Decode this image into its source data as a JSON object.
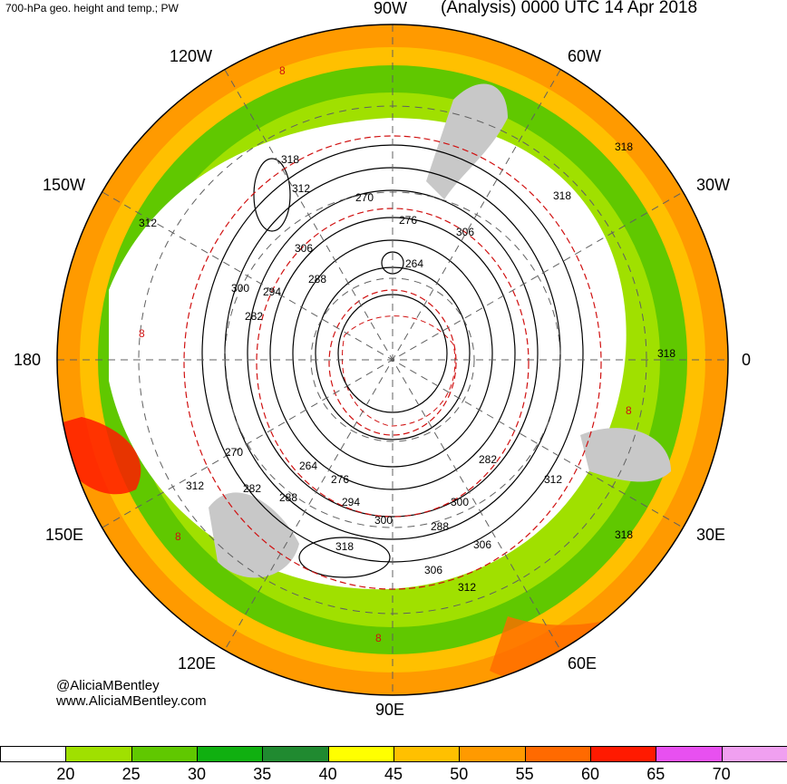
{
  "header": {
    "left_title": "700-hPa geo. height and temp.; PW",
    "right_title": "(Analysis) 0000 UTC 14 Apr 2018"
  },
  "longitude_labels": [
    "90W",
    "60W",
    "30W",
    "0",
    "30E",
    "60E",
    "90E",
    "120E",
    "150E",
    "180",
    "150W",
    "120W"
  ],
  "contour_labels": [
    "318",
    "312",
    "306",
    "300",
    "294",
    "288",
    "282",
    "276",
    "270",
    "264",
    "8"
  ],
  "credits": {
    "twitter": "@AliciaMBentley",
    "website": "www.AliciaMBentley.com"
  },
  "colorbar": {
    "ticks": [
      "20",
      "25",
      "30",
      "35",
      "40",
      "45",
      "50",
      "55",
      "60",
      "65",
      "70"
    ],
    "colors": [
      "#ffffff",
      "#a0e000",
      "#60c800",
      "#10b010",
      "#208a30",
      "#ffff00",
      "#ffc000",
      "#ff9a00",
      "#ff6a00",
      "#ff1a00",
      "#e850f0",
      "#f0a0f0"
    ]
  },
  "colors": {
    "height_contour": "#000000",
    "temperature_contour": "#d01010",
    "land_mask": "#c8c8c8",
    "grid": "#606060"
  }
}
